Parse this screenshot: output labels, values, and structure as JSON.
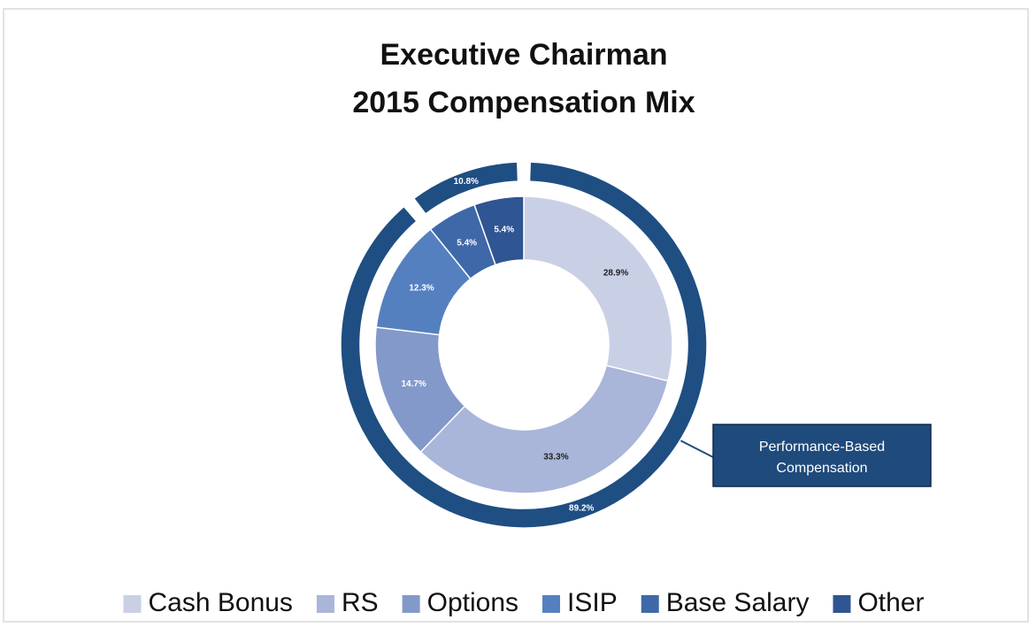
{
  "chart_data": {
    "type": "nested-donut",
    "title": [
      "Executive Chairman",
      "2015 Compensation Mix"
    ],
    "categories": [
      "Cash Bonus",
      "RS",
      "Options",
      "ISIP",
      "Base Salary",
      "Other"
    ],
    "values": [
      28.9,
      33.3,
      14.7,
      12.3,
      5.4,
      5.4
    ],
    "value_labels": [
      "28.9%",
      "33.3%",
      "14.7%",
      "12.3%",
      "5.4%",
      "5.4%"
    ],
    "colors": [
      "#c9d0e6",
      "#a9b5d9",
      "#8399c9",
      "#5580c0",
      "#3f68a8",
      "#2f5592"
    ],
    "outer": {
      "values": [
        89.2,
        10.8
      ],
      "value_labels": [
        "89.2%",
        "10.8%"
      ],
      "color": "#1f4e82"
    },
    "annotation": [
      "Performance-Based",
      "Compensation"
    ],
    "legend": "bottom"
  }
}
